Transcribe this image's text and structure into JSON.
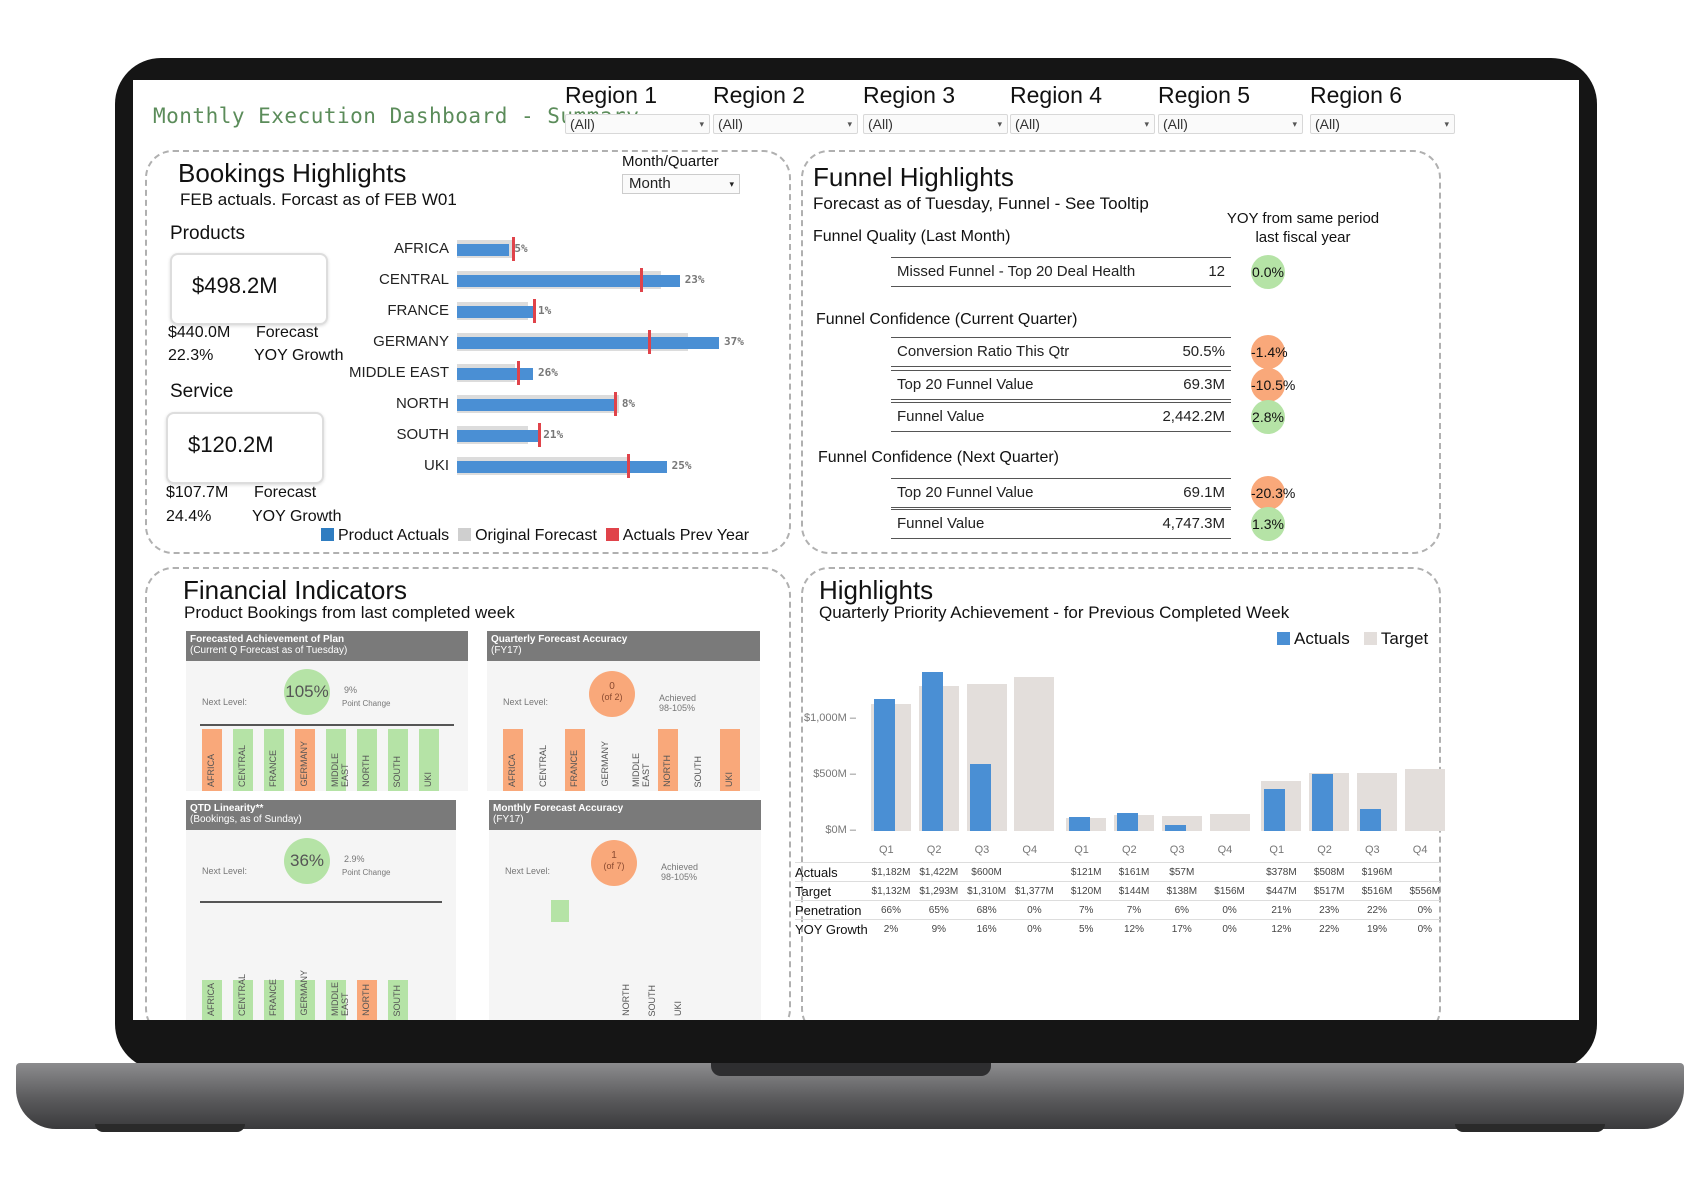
{
  "dashboard": {
    "title": "Monthly Execution Dashboard - Summary"
  },
  "filters": [
    {
      "label": "Region 1",
      "value": "(All)"
    },
    {
      "label": "Region 2",
      "value": "(All)"
    },
    {
      "label": "Region 3",
      "value": "(All)"
    },
    {
      "label": "Region 4",
      "value": "(All)"
    },
    {
      "label": "Region 5",
      "value": "(All)"
    },
    {
      "label": "Region 6",
      "value": "(All)"
    }
  ],
  "bookings": {
    "title": "Bookings Highlights",
    "subtitle": "FEB actuals. Forcast as of FEB W01",
    "period_label": "Month/Quarter",
    "period_value": "Month",
    "products": {
      "label": "Products",
      "value": "$498.2M",
      "forecast_value": "$440.0M",
      "forecast_label": "Forecast",
      "growth_value": "22.3%",
      "growth_label": "YOY Growth"
    },
    "service": {
      "label": "Service",
      "value": "$120.2M",
      "forecast_value": "$107.7M",
      "forecast_label": "Forecast",
      "growth_value": "24.4%",
      "growth_label": "YOY Growth"
    },
    "legend": [
      "Product Actuals",
      "Original Forecast",
      "Actuals Prev Year"
    ],
    "colors": {
      "actual": "#4a8fd4",
      "forecast": "#d0d0d0",
      "prev": "#e0434a"
    }
  },
  "funnel": {
    "title": "Funnel Highlights",
    "subtitle": "Forecast as of Tuesday, Funnel - See Tooltip",
    "yoy_header_1": "YOY from same period",
    "yoy_header_2": "last fiscal  year",
    "quality_title": "Funnel Quality (Last Month)",
    "quality": [
      {
        "label": "Missed Funnel - Top 20 Deal Health",
        "value": "12",
        "yoy": "0.0%",
        "tone": "g"
      }
    ],
    "current_title": "Funnel Confidence (Current Quarter)",
    "current": [
      {
        "label": "Conversion Ratio This Qtr",
        "value": "50.5%",
        "yoy": "-1.4%",
        "tone": "o"
      },
      {
        "label": "Top 20 Funnel Value",
        "value": "69.3M",
        "yoy": "-10.5%",
        "tone": "o"
      },
      {
        "label": "Funnel Value",
        "value": "2,442.2M",
        "yoy": "2.8%",
        "tone": "g"
      }
    ],
    "next_title": "Funnel Confidence (Next Quarter)",
    "next": [
      {
        "label": "Top 20 Funnel Value",
        "value": "69.1M",
        "yoy": "-20.3%",
        "tone": "o"
      },
      {
        "label": "Funnel Value",
        "value": "4,747.3M",
        "yoy": "1.3%",
        "tone": "g"
      }
    ]
  },
  "financial": {
    "title": "Financial Indicators",
    "subtitle": "Product Bookings from last completed week",
    "cards": [
      {
        "title": "Forecasted Achievement of Plan",
        "sub": "(Current Q Forecast as of Tuesday)",
        "next": "Next Level:",
        "main": "105%",
        "change": "9%",
        "change_label": "Point Change",
        "tone": "g"
      },
      {
        "title": "Quarterly Forecast Accuracy",
        "sub": "(FY17)",
        "next": "Next Level:",
        "main": "0",
        "main_sub": "(of 2)",
        "ach": "Achieved",
        "ach_range": "98-105%",
        "tone": "o"
      },
      {
        "title": "QTD Linearity**",
        "sub": "(Bookings, as of Sunday)",
        "next": "Next Level:",
        "main": "36%",
        "change": "2.9%",
        "change_label": "Point Change",
        "tone": "g"
      },
      {
        "title": "Monthly Forecast Accuracy",
        "sub": "(FY17)",
        "next": "Next Level:",
        "main": "1",
        "main_sub": "(of 7)",
        "ach": "Achieved",
        "ach_range": "98-105%",
        "tone": "o"
      }
    ],
    "card1_cols": [
      "AFRICA",
      "CENTRAL",
      "FRANCE",
      "GERMANY",
      "MIDDLE EAST",
      "NORTH",
      "SOUTH",
      "UKI"
    ],
    "card2_cols": [
      "AFRICA",
      "CENTRAL",
      "FRANCE",
      "GERMANY",
      "MIDDLE EAST",
      "NORTH",
      "SOUTH",
      "UKI"
    ],
    "card3_cols": [
      "AFRICA",
      "CENTRAL",
      "FRANCE",
      "GERMANY",
      "MIDDLE EAST",
      "NORTH",
      "SOUTH"
    ],
    "card4_cols": [
      "NORTH",
      "SOUTH",
      "UKI"
    ]
  },
  "highlights": {
    "title": "Highlights",
    "subtitle": "Quarterly Priority Achievement - for Previous Completed Week",
    "legend": [
      "Actuals",
      "Target"
    ],
    "row_labels": [
      "Actuals",
      "Target",
      "Penetration",
      "YOY Growth"
    ],
    "table": {
      "actuals": [
        "$1,182M",
        "$1,422M",
        "$600M",
        "",
        "$121M",
        "$161M",
        "$57M",
        "",
        "$378M",
        "$508M",
        "$196M",
        ""
      ],
      "target": [
        "$1,132M",
        "$1,293M",
        "$1,310M",
        "$1,377M",
        "$120M",
        "$144M",
        "$138M",
        "$156M",
        "$447M",
        "$517M",
        "$516M",
        "$556M"
      ],
      "penetration": [
        "66%",
        "65%",
        "68%",
        "0%",
        "7%",
        "7%",
        "6%",
        "0%",
        "21%",
        "23%",
        "22%",
        "0%"
      ],
      "yoy": [
        "2%",
        "9%",
        "16%",
        "0%",
        "5%",
        "12%",
        "17%",
        "0%",
        "12%",
        "22%",
        "19%",
        "0%"
      ]
    }
  },
  "chart_data": [
    {
      "type": "bar",
      "orientation": "horizontal",
      "categories": [
        "AFRICA",
        "CENTRAL",
        "FRANCE",
        "GERMANY",
        "MIDDLE EAST",
        "NORTH",
        "SOUTH",
        "UKI"
      ],
      "series": [
        {
          "name": "Product Actuals",
          "values": [
            20,
            85,
            29,
            100,
            29,
            61,
            31,
            80
          ]
        },
        {
          "name": "Original Forecast",
          "values": [
            21,
            78,
            27,
            88,
            22,
            62,
            27,
            66
          ]
        },
        {
          "name": "Actuals Prev Year",
          "values": [
            21,
            70,
            29,
            73,
            23,
            60,
            31,
            65
          ]
        }
      ],
      "labels": [
        "5%",
        "23%",
        "1%",
        "37%",
        "26%",
        "8%",
        "21%",
        "25%"
      ]
    },
    {
      "type": "bar",
      "categories": [
        "Q1",
        "Q2",
        "Q3",
        "Q4",
        "Q1",
        "Q2",
        "Q3",
        "Q4",
        "Q1",
        "Q2",
        "Q3",
        "Q4"
      ],
      "series": [
        {
          "name": "Actuals",
          "values": [
            1182,
            1422,
            600,
            0,
            121,
            161,
            57,
            0,
            378,
            508,
            196,
            0
          ]
        },
        {
          "name": "Target",
          "values": [
            1132,
            1293,
            1310,
            1377,
            120,
            144,
            138,
            156,
            447,
            517,
            516,
            556
          ]
        }
      ],
      "y_ticks": [
        "$1,000M",
        "$500M",
        "$0M"
      ],
      "ylim": [
        0,
        1450
      ]
    }
  ]
}
